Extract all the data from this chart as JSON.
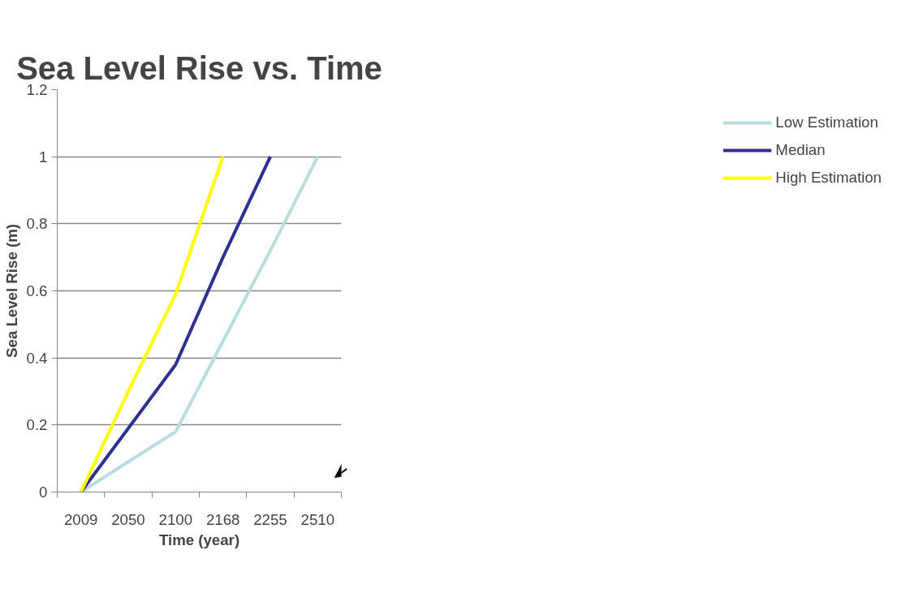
{
  "chart_data": {
    "type": "line",
    "title": "Sea Level Rise vs. Time",
    "xlabel": "Time (year)",
    "ylabel": "Sea Level Rise (m)",
    "categories": [
      "2009",
      "2050",
      "2100",
      "2168",
      "2255",
      "2510"
    ],
    "series": [
      {
        "name": "Low Estimation",
        "color": "#b7dde0",
        "values": [
          0,
          0.09,
          0.18,
          0.45,
          0.72,
          1.0
        ]
      },
      {
        "name": "Median",
        "color": "#2e3192",
        "values": [
          0,
          0.19,
          0.38,
          0.7,
          1.0,
          null
        ]
      },
      {
        "name": "High Estimation",
        "color": "#ffff00",
        "values": [
          0,
          0.3,
          0.59,
          1.0,
          null,
          null
        ]
      }
    ],
    "ylim": [
      0,
      1.2
    ],
    "yticks": [
      0,
      0.2,
      0.4,
      0.6,
      0.8,
      1,
      1.2
    ],
    "grid": "y",
    "legend": "right",
    "marker": "none",
    "line_style": "solid"
  }
}
